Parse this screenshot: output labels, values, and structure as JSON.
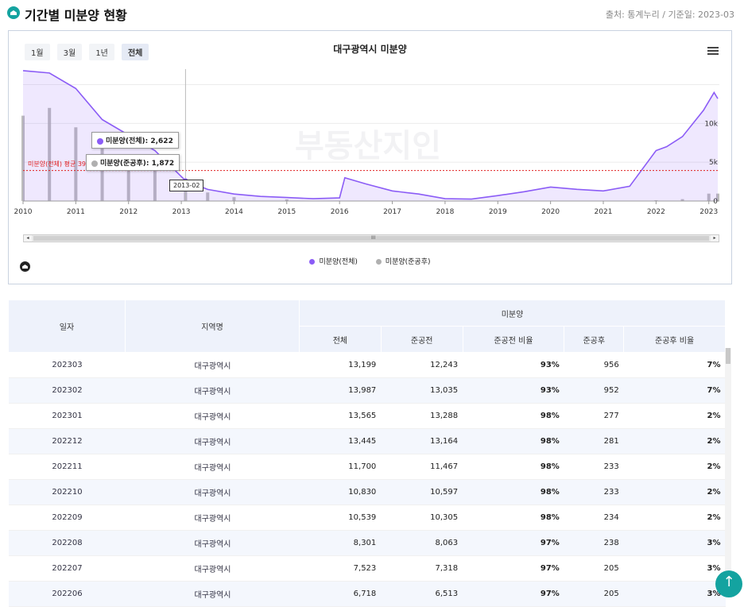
{
  "header": {
    "title": "기간별 미분양 현황",
    "source": "출처: 통계누리 / 기준일: 2023-03"
  },
  "chart": {
    "title": "대구광역시 미분양",
    "range_buttons": [
      "1월",
      "3월",
      "1년",
      "전체"
    ],
    "active_range": "전체",
    "watermark": "부동산지인",
    "avg_label": "미분양(전체) 평균 3924",
    "tooltip_total": "미분양(전체): 2,622",
    "tooltip_after": "미분양(준공후): 1,872",
    "tooltip_date": "2013-02",
    "scroll_grip": "III",
    "scroll_left": "◂",
    "scroll_right": "▸",
    "colors": {
      "total": "#8b5cf6",
      "after": "#b0b0b0",
      "avg": "#e02020"
    },
    "legend": [
      "미분양(전체)",
      "미분양(준공후)"
    ]
  },
  "chart_data": {
    "type": "line",
    "title": "대구광역시 미분양",
    "x_ticks": [
      "2010",
      "2011",
      "2012",
      "2013",
      "2014",
      "2015",
      "2016",
      "2017",
      "2018",
      "2019",
      "2020",
      "2021",
      "2022",
      "2023"
    ],
    "y_ticks": [
      "0",
      "5k",
      "10k"
    ],
    "ylim": [
      0,
      17000
    ],
    "series": [
      {
        "name": "미분양(전체)",
        "type": "area",
        "x": [
          2010,
          2010.5,
          2011,
          2011.5,
          2012,
          2012.5,
          2013.08,
          2013.5,
          2014,
          2014.5,
          2015,
          2015.5,
          2016,
          2016.1,
          2016.5,
          2017,
          2017.5,
          2018,
          2018.5,
          2019,
          2019.5,
          2020,
          2020.5,
          2021,
          2021.5,
          2022,
          2022.2,
          2022.5,
          2022.9,
          2023.1,
          2023.17
        ],
        "values": [
          16800,
          16500,
          14500,
          10500,
          8500,
          6500,
          2622,
          1500,
          900,
          600,
          450,
          300,
          400,
          3000,
          2200,
          1300,
          900,
          300,
          250,
          700,
          1200,
          1800,
          1500,
          1300,
          1900,
          6500,
          7000,
          8300,
          11700,
          13987,
          13199
        ]
      },
      {
        "name": "미분양(준공후)",
        "type": "bar",
        "x": [
          2010,
          2010.5,
          2011,
          2011.5,
          2012,
          2012.5,
          2013.08,
          2013.5,
          2014,
          2015,
          2016,
          2017,
          2018,
          2019,
          2020,
          2021,
          2022,
          2022.5,
          2023,
          2023.17
        ],
        "values": [
          11000,
          12000,
          9500,
          7500,
          5500,
          4000,
          1872,
          1100,
          500,
          200,
          50,
          50,
          30,
          30,
          40,
          30,
          100,
          240,
          952,
          956
        ]
      }
    ],
    "average_line": 3924,
    "legend_position": "bottom",
    "grid": true
  },
  "table": {
    "headers": {
      "date": "일자",
      "region": "지역명",
      "group": "미분양",
      "total": "전체",
      "before": "준공전",
      "before_ratio": "준공전 비율",
      "after": "준공후",
      "after_ratio": "준공후 비율"
    },
    "rows": [
      {
        "date": "202303",
        "region": "대구광역시",
        "total": "13,199",
        "before": "12,243",
        "before_ratio": "93%",
        "after": "956",
        "after_ratio": "7%"
      },
      {
        "date": "202302",
        "region": "대구광역시",
        "total": "13,987",
        "before": "13,035",
        "before_ratio": "93%",
        "after": "952",
        "after_ratio": "7%"
      },
      {
        "date": "202301",
        "region": "대구광역시",
        "total": "13,565",
        "before": "13,288",
        "before_ratio": "98%",
        "after": "277",
        "after_ratio": "2%"
      },
      {
        "date": "202212",
        "region": "대구광역시",
        "total": "13,445",
        "before": "13,164",
        "before_ratio": "98%",
        "after": "281",
        "after_ratio": "2%"
      },
      {
        "date": "202211",
        "region": "대구광역시",
        "total": "11,700",
        "before": "11,467",
        "before_ratio": "98%",
        "after": "233",
        "after_ratio": "2%"
      },
      {
        "date": "202210",
        "region": "대구광역시",
        "total": "10,830",
        "before": "10,597",
        "before_ratio": "98%",
        "after": "233",
        "after_ratio": "2%"
      },
      {
        "date": "202209",
        "region": "대구광역시",
        "total": "10,539",
        "before": "10,305",
        "before_ratio": "98%",
        "after": "234",
        "after_ratio": "2%"
      },
      {
        "date": "202208",
        "region": "대구광역시",
        "total": "8,301",
        "before": "8,063",
        "before_ratio": "97%",
        "after": "238",
        "after_ratio": "3%"
      },
      {
        "date": "202207",
        "region": "대구광역시",
        "total": "7,523",
        "before": "7,318",
        "before_ratio": "97%",
        "after": "205",
        "after_ratio": "3%"
      },
      {
        "date": "202206",
        "region": "대구광역시",
        "total": "6,718",
        "before": "6,513",
        "before_ratio": "97%",
        "after": "205",
        "after_ratio": "3%"
      }
    ]
  },
  "top_button": "↑"
}
